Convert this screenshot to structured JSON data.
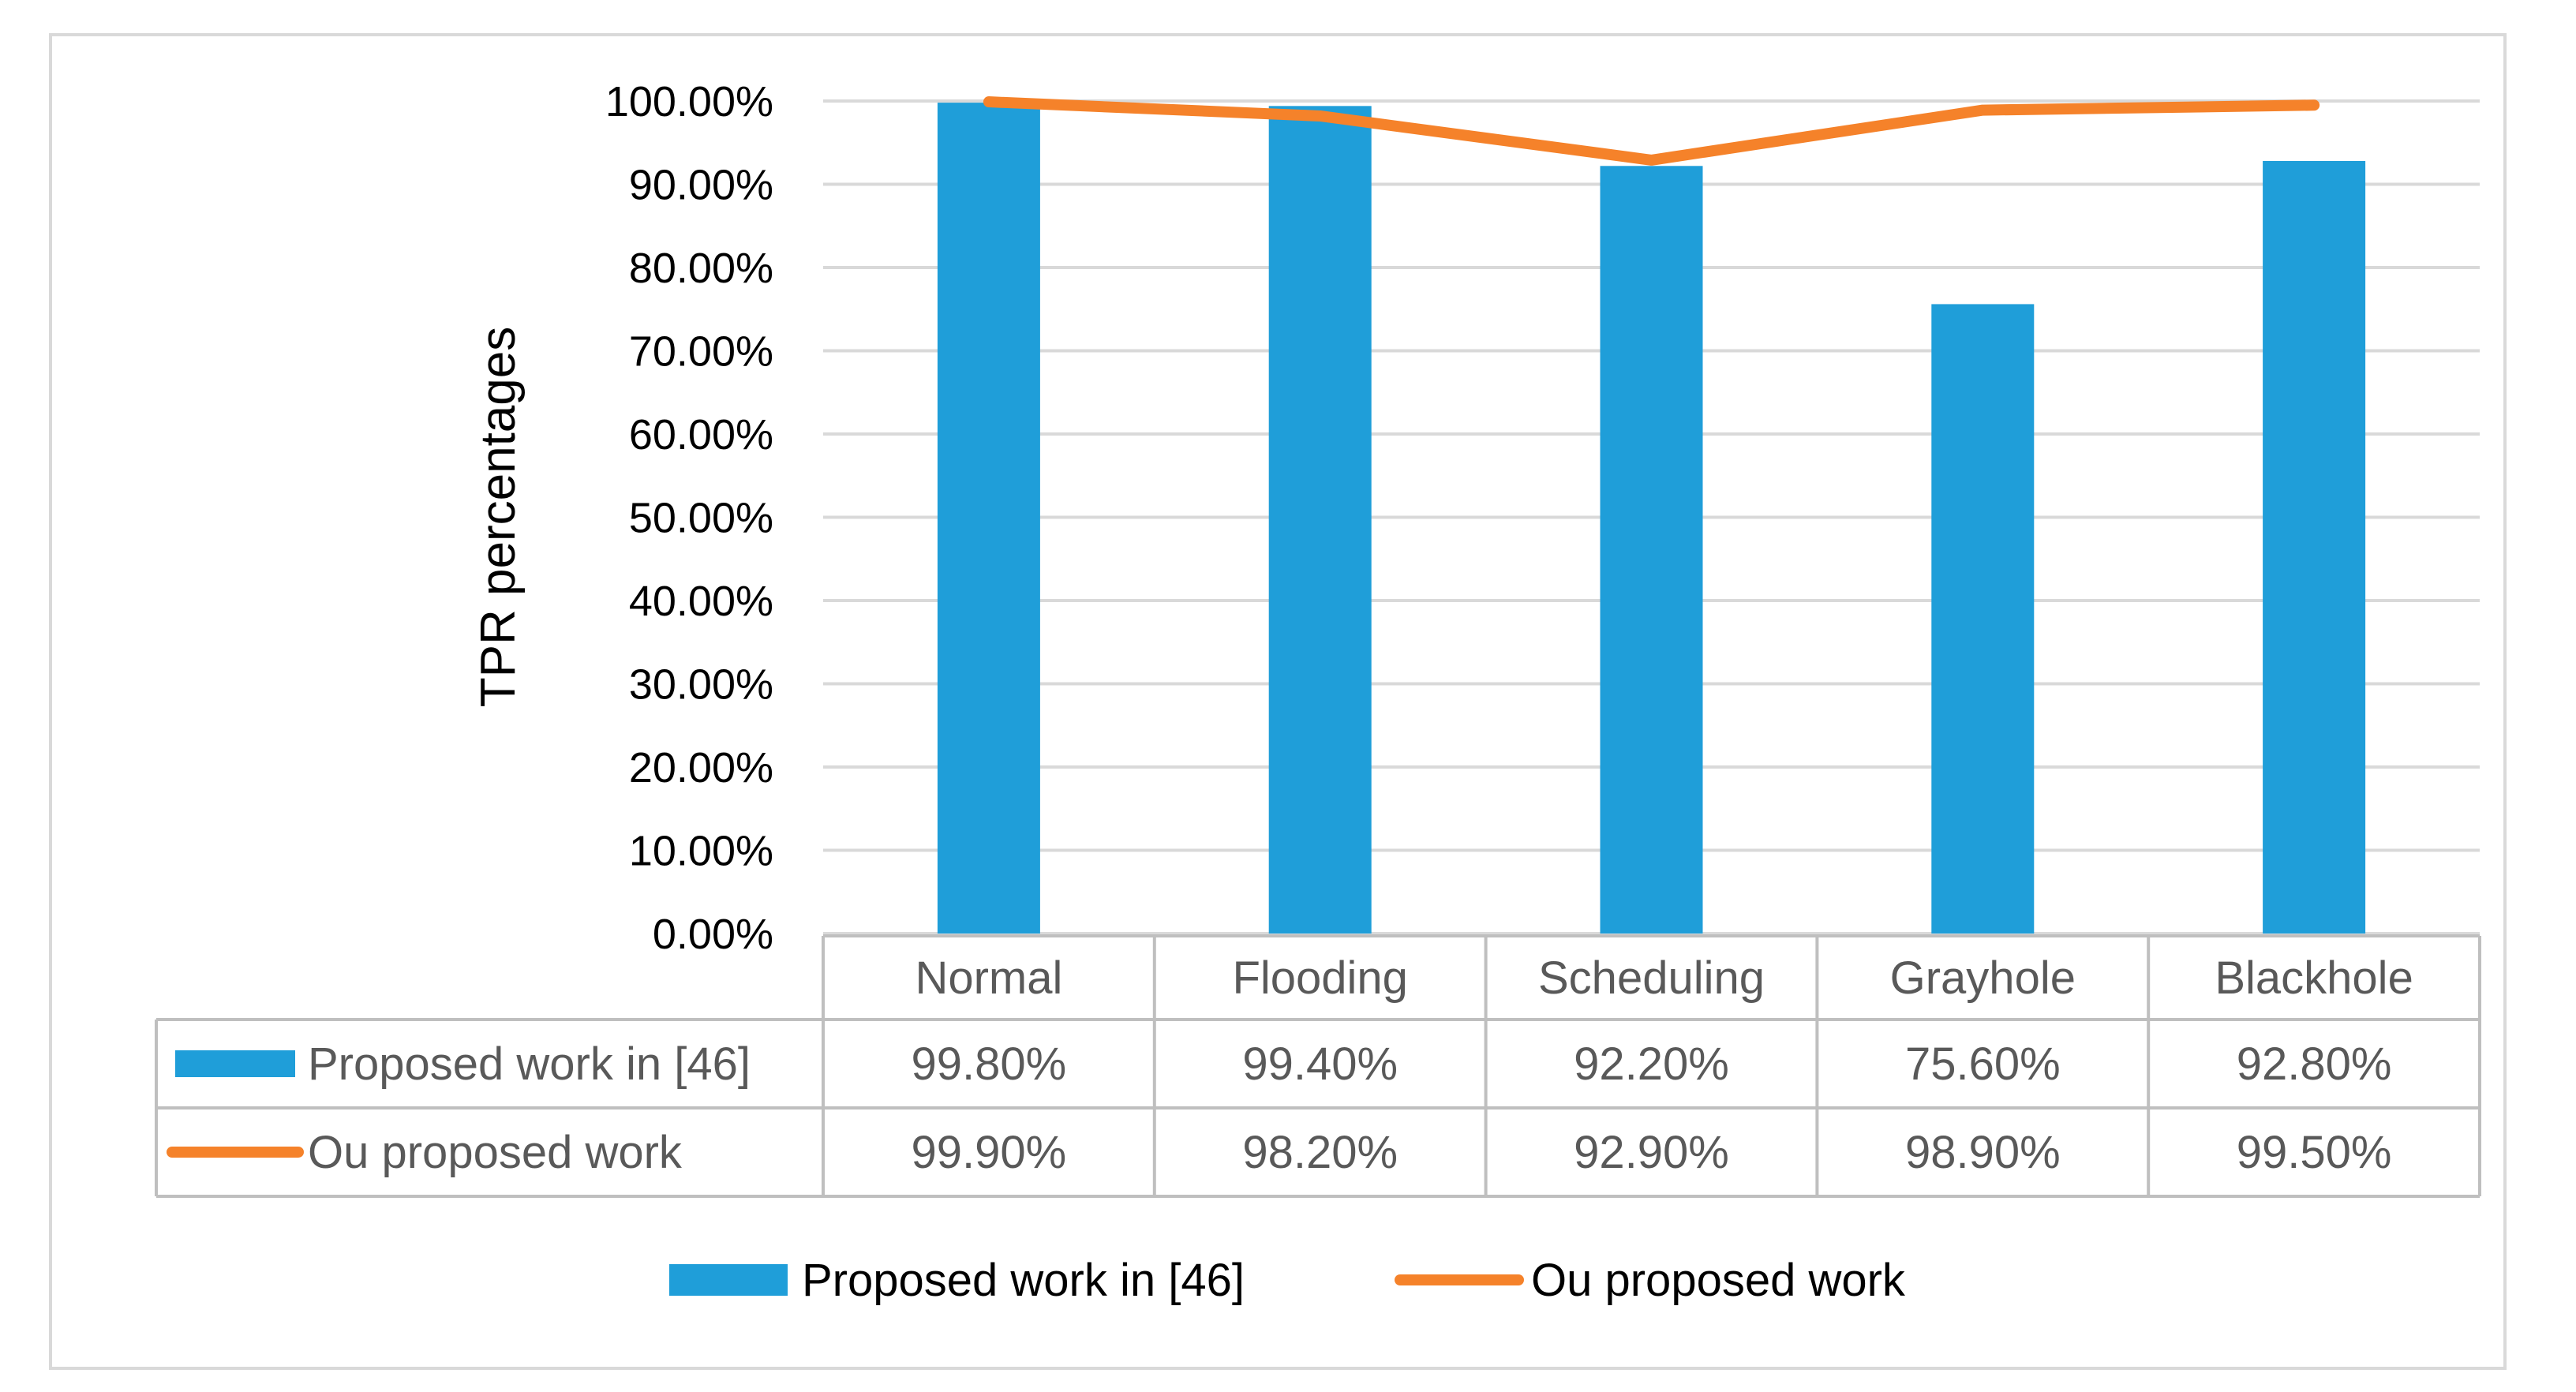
{
  "colors": {
    "bar": "#1f9ed9",
    "line": "#f5822a",
    "grid": "#d9d9d9",
    "table_border": "#bfbfbf",
    "table_text": "#595959"
  },
  "chart_data": {
    "type": "bar",
    "ylabel": "TPR percentages",
    "xlabel": "",
    "ylim": [
      0,
      100
    ],
    "yticks": [
      "0.00%",
      "10.00%",
      "20.00%",
      "30.00%",
      "40.00%",
      "50.00%",
      "60.00%",
      "70.00%",
      "80.00%",
      "90.00%",
      "100.00%"
    ],
    "categories": [
      "Normal",
      "Flooding",
      "Scheduling",
      "Grayhole",
      "Blackhole"
    ],
    "grid": true,
    "legend_position": "bottom",
    "data_table": true,
    "series": [
      {
        "name": "Proposed work in [46]",
        "type": "bar",
        "values": [
          99.8,
          99.4,
          92.2,
          75.6,
          92.8
        ],
        "labels": [
          "99.80%",
          "99.40%",
          "92.20%",
          "75.60%",
          "92.80%"
        ]
      },
      {
        "name": "Ou proposed work",
        "type": "line",
        "values": [
          99.9,
          98.2,
          92.9,
          98.9,
          99.5
        ],
        "labels": [
          "99.90%",
          "98.20%",
          "92.90%",
          "98.90%",
          "99.50%"
        ]
      }
    ]
  }
}
